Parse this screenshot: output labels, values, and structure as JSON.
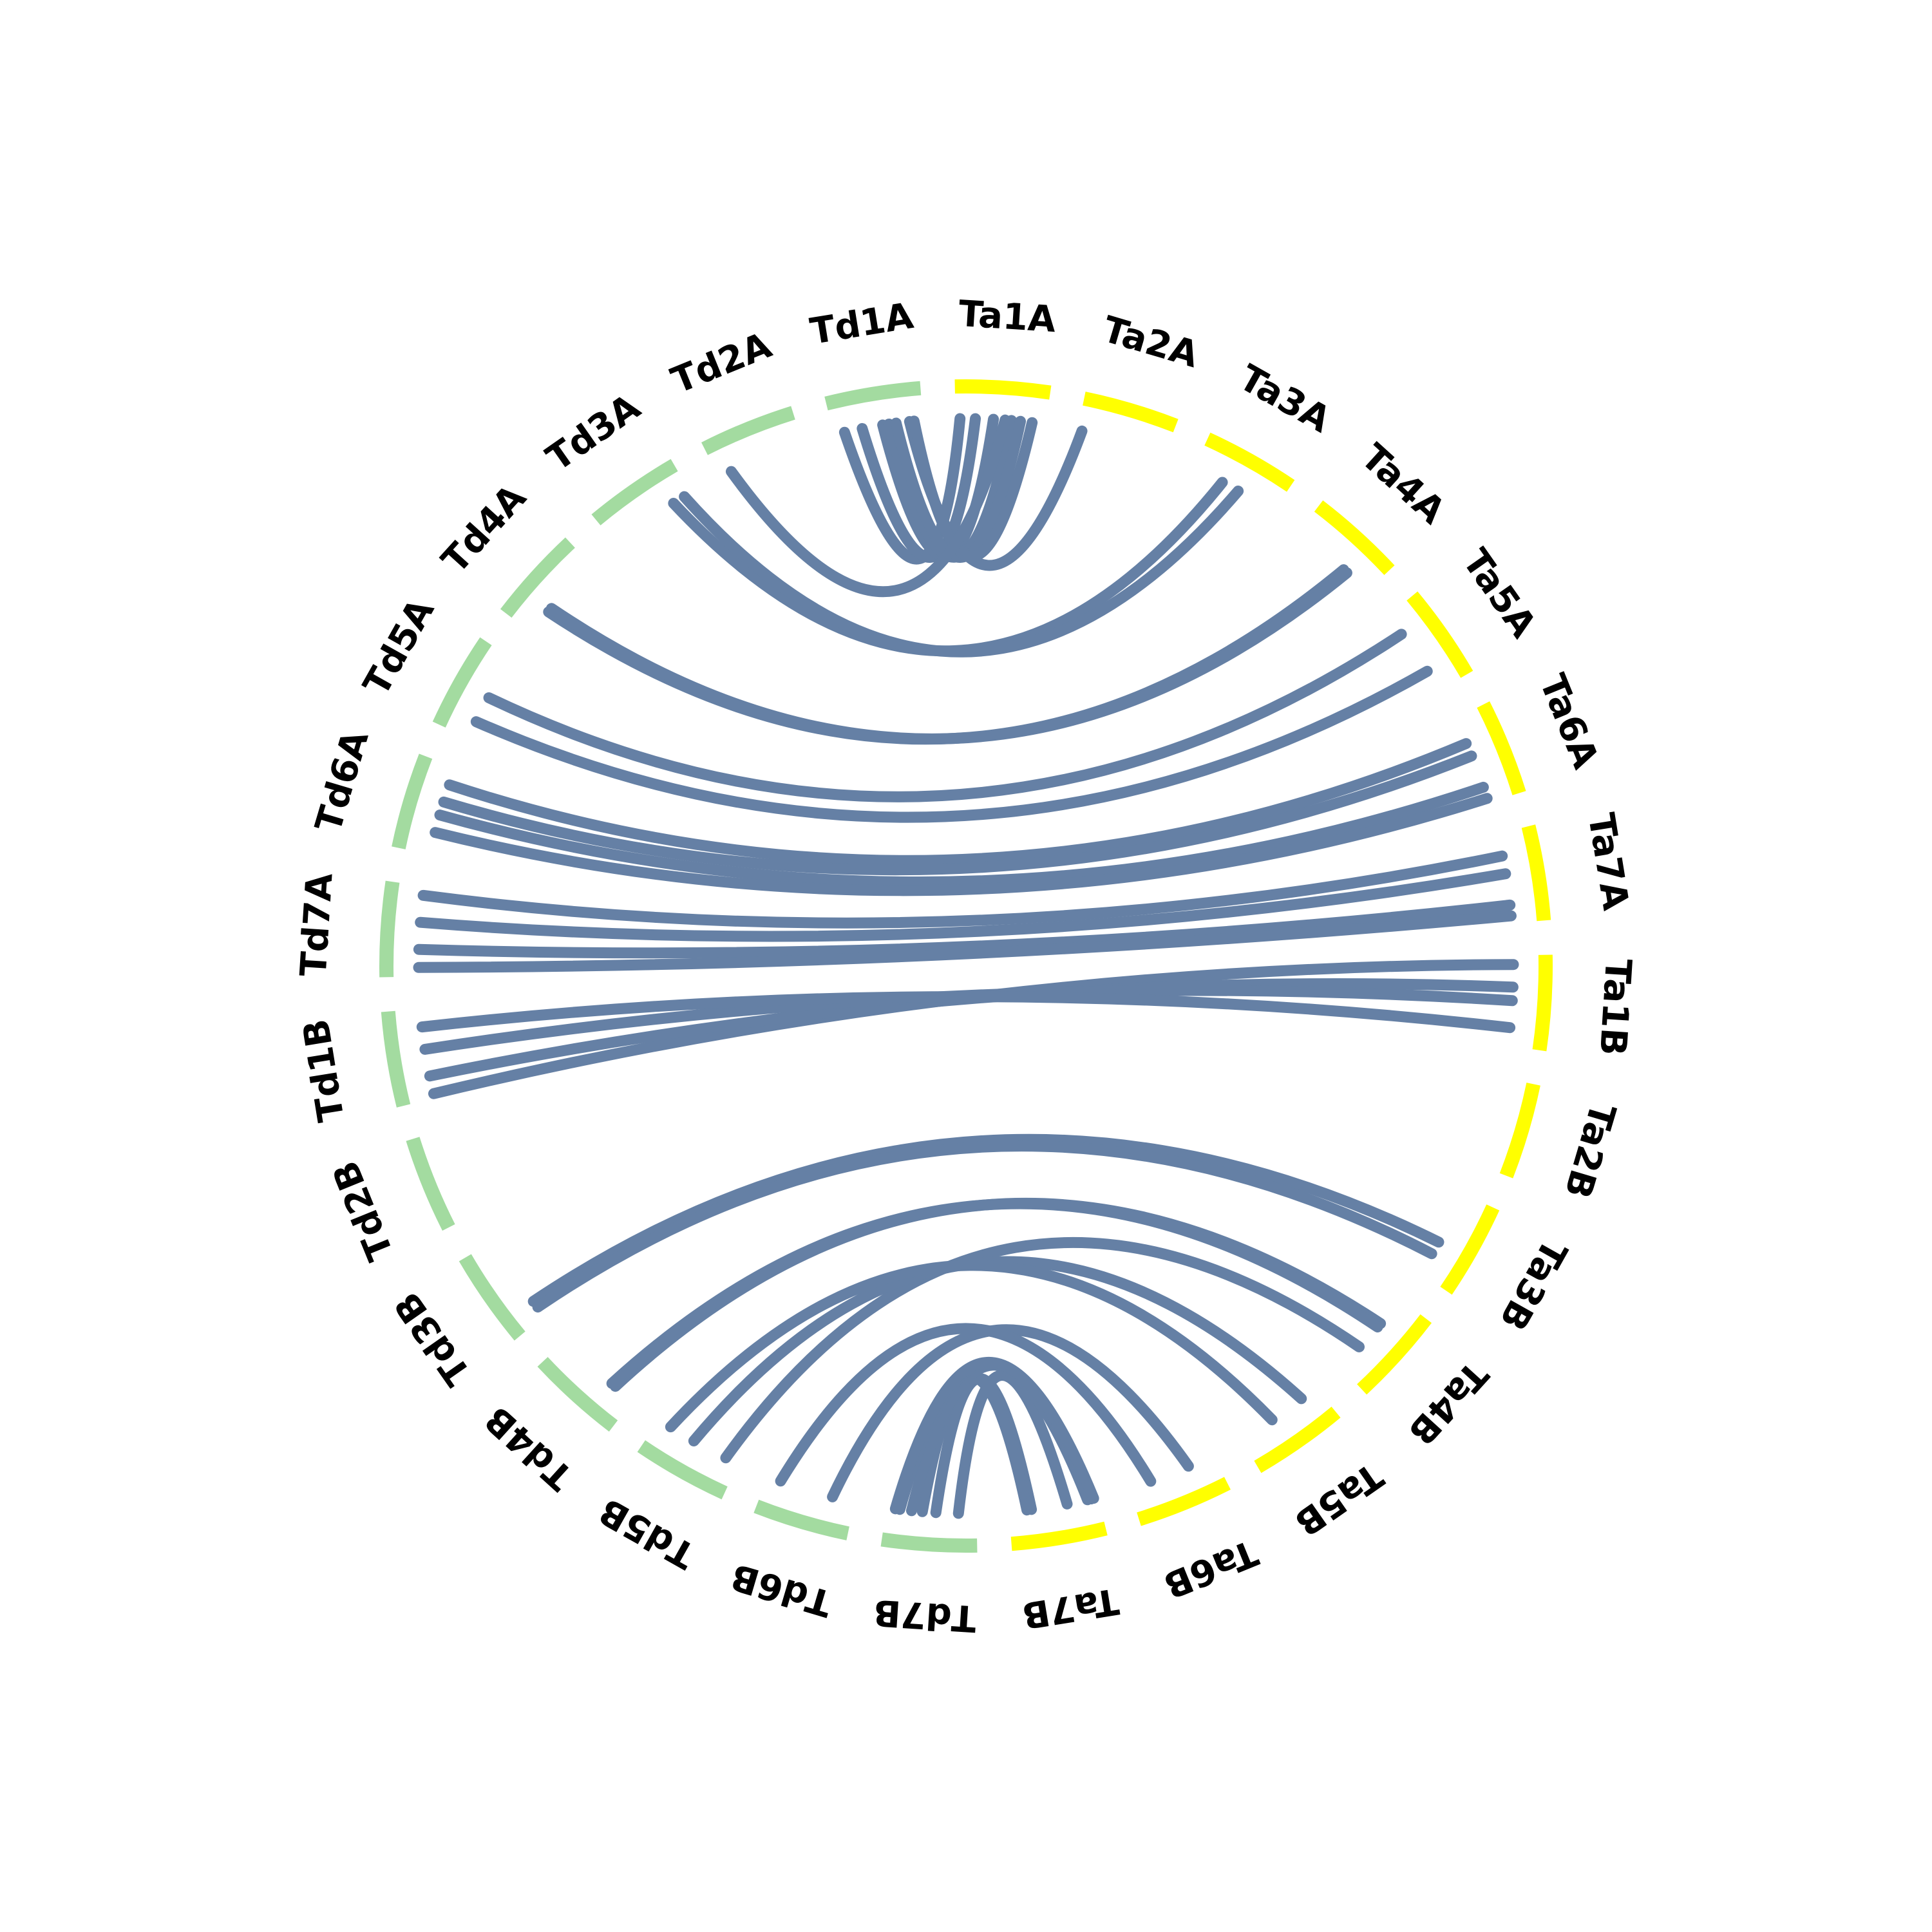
{
  "colors": {
    "td_segment": "#a3dba0",
    "ta_segment": "#ffff00",
    "link": "#6580a5",
    "background": "#ffffff"
  },
  "segments": [
    {
      "id": "Ta1A",
      "label": "Ta1A",
      "group": "Ta"
    },
    {
      "id": "Ta2A",
      "label": "Ta2A",
      "group": "Ta"
    },
    {
      "id": "Ta3A",
      "label": "Ta3A",
      "group": "Ta"
    },
    {
      "id": "Ta4A",
      "label": "Ta4A",
      "group": "Ta"
    },
    {
      "id": "Ta5A",
      "label": "Ta5A",
      "group": "Ta"
    },
    {
      "id": "Ta6A",
      "label": "Ta6A",
      "group": "Ta"
    },
    {
      "id": "Ta7A",
      "label": "Ta7A",
      "group": "Ta"
    },
    {
      "id": "Ta1B",
      "label": "Ta1B",
      "group": "Ta"
    },
    {
      "id": "Ta2B",
      "label": "Ta2B",
      "group": "Ta"
    },
    {
      "id": "Ta3B",
      "label": "Ta3B",
      "group": "Ta"
    },
    {
      "id": "Ta4B",
      "label": "Ta4B",
      "group": "Ta"
    },
    {
      "id": "Ta5B",
      "label": "Ta5B",
      "group": "Ta"
    },
    {
      "id": "Ta6B",
      "label": "Ta6B",
      "group": "Ta"
    },
    {
      "id": "Ta7B",
      "label": "Ta7B",
      "group": "Ta"
    },
    {
      "id": "Td7B",
      "label": "Td7B",
      "group": "Td"
    },
    {
      "id": "Td6B",
      "label": "Td6B",
      "group": "Td"
    },
    {
      "id": "Td5B",
      "label": "Td5B",
      "group": "Td"
    },
    {
      "id": "Td4B",
      "label": "Td4B",
      "group": "Td"
    },
    {
      "id": "Td3B",
      "label": "Td3B",
      "group": "Td"
    },
    {
      "id": "Td2B",
      "label": "Td2B",
      "group": "Td"
    },
    {
      "id": "Td1B",
      "label": "Td1B",
      "group": "Td"
    },
    {
      "id": "Td7A",
      "label": "Td7A",
      "group": "Td"
    },
    {
      "id": "Td6A",
      "label": "Td6A",
      "group": "Td"
    },
    {
      "id": "Td5A",
      "label": "Td5A",
      "group": "Td"
    },
    {
      "id": "Td4A",
      "label": "Td4A",
      "group": "Td"
    },
    {
      "id": "Td3A",
      "label": "Td3A",
      "group": "Td"
    },
    {
      "id": "Td2A",
      "label": "Td2A",
      "group": "Td"
    },
    {
      "id": "Td1A",
      "label": "Td1A",
      "group": "Td"
    }
  ],
  "links": [
    {
      "from": "Td1A",
      "to": "Ta1A",
      "pos_from": 0.12,
      "pos_to": 0.05
    },
    {
      "from": "Td1A",
      "to": "Ta1A",
      "pos_from": 0.32,
      "pos_to": 0.22
    },
    {
      "from": "Td1A",
      "to": "Ta1A",
      "pos_from": 0.55,
      "pos_to": 0.42
    },
    {
      "from": "Td1A",
      "to": "Ta1A",
      "pos_from": 0.62,
      "pos_to": 0.62
    },
    {
      "from": "Td1A",
      "to": "Ta1A",
      "pos_from": 0.7,
      "pos_to": 0.72
    },
    {
      "from": "Td1A",
      "to": "Ta2A",
      "pos_from": 0.85,
      "pos_to": 0.05
    },
    {
      "from": "Td1A",
      "to": "Ta1A",
      "pos_from": 0.9,
      "pos_to": 0.85
    },
    {
      "from": "Td2A",
      "to": "Ta1A",
      "pos_from": 0.15,
      "pos_to": 0.55
    },
    {
      "from": "Td3A",
      "to": "Ta3A",
      "pos_from": 0.78,
      "pos_to": 0.35
    },
    {
      "from": "Td3A",
      "to": "Ta3A",
      "pos_from": 0.92,
      "pos_to": 0.55
    },
    {
      "from": "Td4A",
      "to": "Ta4A",
      "pos_from": 0.3,
      "pos_to": 0.65
    },
    {
      "from": "Td4A",
      "to": "Ta4A",
      "pos_from": 0.35,
      "pos_to": 0.7
    },
    {
      "from": "Td5A",
      "to": "Ta5A",
      "pos_from": 0.5,
      "pos_to": 0.25
    },
    {
      "from": "Td5A",
      "to": "Ta5A",
      "pos_from": 0.2,
      "pos_to": 0.75
    },
    {
      "from": "Td6A",
      "to": "Ta6A",
      "pos_from": 0.8,
      "pos_to": 0.3
    },
    {
      "from": "Td6A",
      "to": "Ta6A",
      "pos_from": 0.6,
      "pos_to": 0.45
    },
    {
      "from": "Td6A",
      "to": "Ta6A",
      "pos_from": 0.45,
      "pos_to": 0.82
    },
    {
      "from": "Td6A",
      "to": "Ta6A",
      "pos_from": 0.25,
      "pos_to": 0.95
    },
    {
      "from": "Td7A",
      "to": "Ta7A",
      "pos_from": 0.9,
      "pos_to": 0.25
    },
    {
      "from": "Td7A",
      "to": "Ta7A",
      "pos_from": 0.6,
      "pos_to": 0.45
    },
    {
      "from": "Td7A",
      "to": "Ta7A",
      "pos_from": 0.3,
      "pos_to": 0.8
    },
    {
      "from": "Td7A",
      "to": "Ta7A",
      "pos_from": 0.1,
      "pos_to": 0.92
    },
    {
      "from": "Td1B",
      "to": "Ta1B",
      "pos_from": 0.05,
      "pos_to": 0.1
    },
    {
      "from": "Td1B",
      "to": "Ta1B",
      "pos_from": 0.25,
      "pos_to": 0.35
    },
    {
      "from": "Td1B",
      "to": "Ta1B",
      "pos_from": 0.55,
      "pos_to": 0.5
    },
    {
      "from": "Td1B",
      "to": "Ta1B",
      "pos_from": 0.8,
      "pos_to": 0.8
    },
    {
      "from": "Td3B",
      "to": "Ta3B",
      "pos_from": 0.2,
      "pos_to": 0.6
    },
    {
      "from": "Td3B",
      "to": "Ta3B",
      "pos_from": 0.12,
      "pos_to": 0.75
    },
    {
      "from": "Td4B",
      "to": "Ta4B",
      "pos_from": 0.25,
      "pos_to": 0.35
    },
    {
      "from": "Td4B",
      "to": "Ta4B",
      "pos_from": 0.3,
      "pos_to": 0.4
    },
    {
      "from": "Td5B",
      "to": "Ta4B",
      "pos_from": 0.15,
      "pos_to": 0.7
    },
    {
      "from": "Td5B",
      "to": "Ta5B",
      "pos_from": 0.55,
      "pos_to": 0.2
    },
    {
      "from": "Td5B",
      "to": "Ta5B",
      "pos_from": 0.85,
      "pos_to": 0.6
    },
    {
      "from": "Td6B",
      "to": "Ta6B",
      "pos_from": 0.25,
      "pos_to": 0.3
    },
    {
      "from": "Td6B",
      "to": "Ta6B",
      "pos_from": 0.85,
      "pos_to": 0.75
    },
    {
      "from": "Td7B",
      "to": "Ta7B",
      "pos_from": 0.2,
      "pos_to": 0.35
    },
    {
      "from": "Td7B",
      "to": "Ta7B",
      "pos_from": 0.45,
      "pos_to": 0.75
    },
    {
      "from": "Td7B",
      "to": "Ta7B",
      "pos_from": 0.6,
      "pos_to": 0.8
    },
    {
      "from": "Td7B",
      "to": "Ta7B",
      "pos_from": 0.72,
      "pos_to": 0.08
    },
    {
      "from": "Td7B",
      "to": "Ta7B",
      "pos_from": 0.85,
      "pos_to": 0.12
    },
    {
      "from": "Td7B",
      "to": "Ta7B",
      "pos_from": 0.9,
      "pos_to": 0.05
    }
  ]
}
